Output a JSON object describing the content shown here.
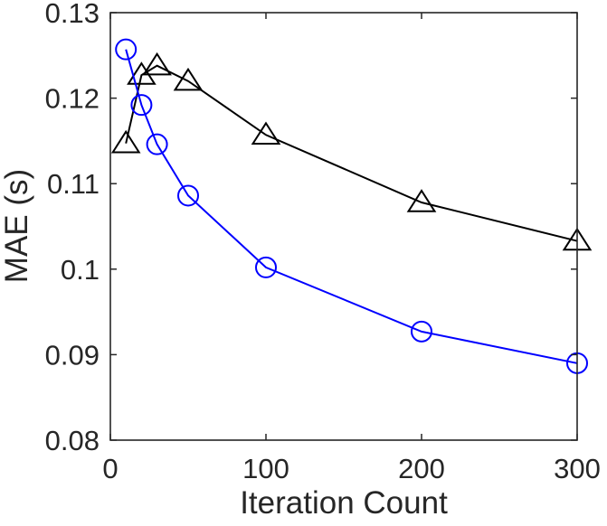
{
  "chart_data": {
    "type": "line",
    "title": "",
    "xlabel": "Iteration Count",
    "ylabel": "MAE (s)",
    "xlim": [
      0,
      300
    ],
    "ylim": [
      0.08,
      0.13
    ],
    "xticks": [
      0,
      100,
      200,
      300
    ],
    "xtick_labels": [
      "0",
      "100",
      "200",
      "300"
    ],
    "yticks": [
      0.08,
      0.09,
      0.1,
      0.11,
      0.12,
      0.13
    ],
    "ytick_labels": [
      "0.08",
      "0.09",
      "0.1",
      "0.11",
      "0.12",
      "0.13"
    ],
    "grid": false,
    "legend": "none",
    "series": [
      {
        "marker": "triangle",
        "color": "#000000",
        "x": [
          10,
          20,
          30,
          50,
          100,
          200,
          300
        ],
        "y": [
          0.1147,
          0.1227,
          0.1238,
          0.122,
          0.1157,
          0.1078,
          0.1033
        ]
      },
      {
        "marker": "circle",
        "color": "#0000ff",
        "x": [
          10,
          20,
          30,
          50,
          100,
          200,
          300
        ],
        "y": [
          0.1257,
          0.1192,
          0.1146,
          0.1086,
          0.1002,
          0.0927,
          0.089
        ]
      }
    ]
  }
}
